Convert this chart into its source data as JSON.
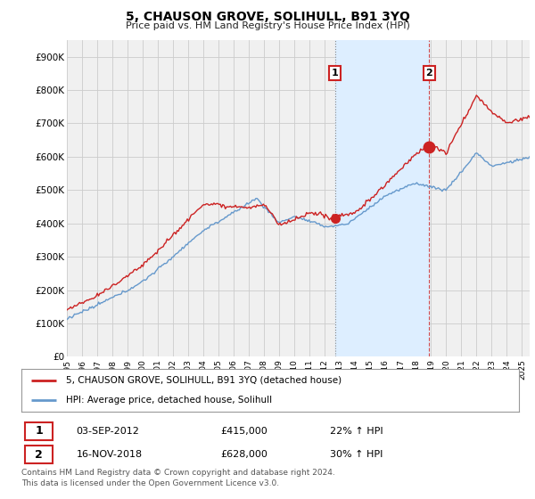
{
  "title": "5, CHAUSON GROVE, SOLIHULL, B91 3YQ",
  "subtitle": "Price paid vs. HM Land Registry's House Price Index (HPI)",
  "ylabel_ticks": [
    "£0",
    "£100K",
    "£200K",
    "£300K",
    "£400K",
    "£500K",
    "£600K",
    "£700K",
    "£800K",
    "£900K"
  ],
  "ytick_values": [
    0,
    100000,
    200000,
    300000,
    400000,
    500000,
    600000,
    700000,
    800000,
    900000
  ],
  "ylim": [
    0,
    950000
  ],
  "xlim_start": 1995.0,
  "xlim_end": 2025.5,
  "hpi_color": "#6699cc",
  "price_color": "#cc2222",
  "marker1_x": 2012.67,
  "marker1_y": 415000,
  "marker2_x": 2018.88,
  "marker2_y": 628000,
  "shade_color": "#ddeeff",
  "vline1_color": "#aaaaaa",
  "vline2_color": "#cc2222",
  "legend_label1": "5, CHAUSON GROVE, SOLIHULL, B91 3YQ (detached house)",
  "legend_label2": "HPI: Average price, detached house, Solihull",
  "table_row1": [
    "1",
    "03-SEP-2012",
    "£415,000",
    "22% ↑ HPI"
  ],
  "table_row2": [
    "2",
    "16-NOV-2018",
    "£628,000",
    "30% ↑ HPI"
  ],
  "footer": "Contains HM Land Registry data © Crown copyright and database right 2024.\nThis data is licensed under the Open Government Licence v3.0.",
  "bg_color": "#ffffff",
  "plot_bg_color": "#f0f0f0",
  "grid_color": "#cccccc"
}
